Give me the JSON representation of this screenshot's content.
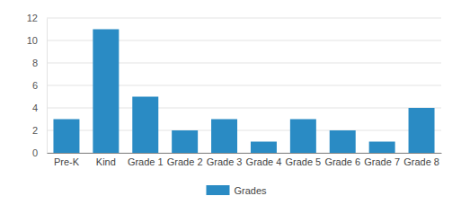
{
  "chart_data": {
    "type": "bar",
    "categories": [
      "Pre-K",
      "Kind",
      "Grade 1",
      "Grade 2",
      "Grade 3",
      "Grade 4",
      "Grade 5",
      "Grade 6",
      "Grade 7",
      "Grade 8"
    ],
    "series": [
      {
        "name": "Grades",
        "color": "#2a8bc4",
        "values": [
          3,
          11,
          5,
          2,
          3,
          1,
          3,
          2,
          1,
          4
        ]
      }
    ],
    "ylim": [
      0,
      12
    ],
    "yticks": [
      0,
      2,
      4,
      6,
      8,
      10,
      12
    ],
    "grid": true,
    "legend": "bottom"
  }
}
